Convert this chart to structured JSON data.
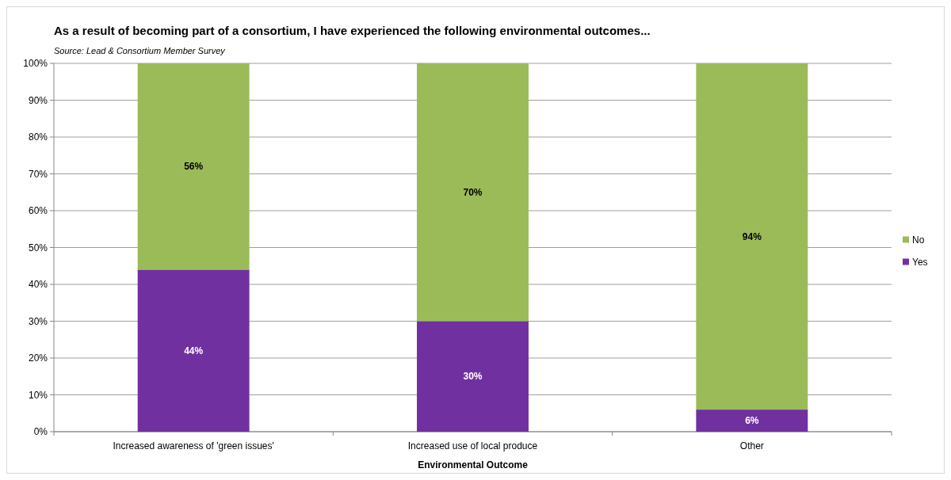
{
  "chart_data": {
    "type": "bar",
    "stacked": true,
    "title": "As a result of becoming part of a consortium, I have experienced the following environmental outcomes...",
    "annotations": [
      "Source: Lead & Consortium Member Survey"
    ],
    "xlabel": "Environmental Outcome",
    "categories": [
      "Increased awareness of 'green issues'",
      "Increased use of local produce",
      "Other"
    ],
    "series": [
      {
        "name": "Yes",
        "color": "#7030a0",
        "values": [
          44,
          30,
          6
        ],
        "value_labels": [
          "44%",
          "30%",
          "6%"
        ]
      },
      {
        "name": "No",
        "color": "#9bbb59",
        "values": [
          56,
          70,
          94
        ],
        "value_labels": [
          "56%",
          "70%",
          "94%"
        ]
      }
    ],
    "ylim": [
      0,
      100
    ],
    "yticks": [
      {
        "value": 0,
        "label": "0%"
      },
      {
        "value": 10,
        "label": "10%"
      },
      {
        "value": 20,
        "label": "20%"
      },
      {
        "value": 30,
        "label": "30%"
      },
      {
        "value": 40,
        "label": "40%"
      },
      {
        "value": 50,
        "label": "50%"
      },
      {
        "value": 60,
        "label": "60%"
      },
      {
        "value": 70,
        "label": "70%"
      },
      {
        "value": 80,
        "label": "80%"
      },
      {
        "value": 90,
        "label": "90%"
      },
      {
        "value": 100,
        "label": "100%"
      }
    ],
    "grid": "y",
    "legend": "right"
  }
}
